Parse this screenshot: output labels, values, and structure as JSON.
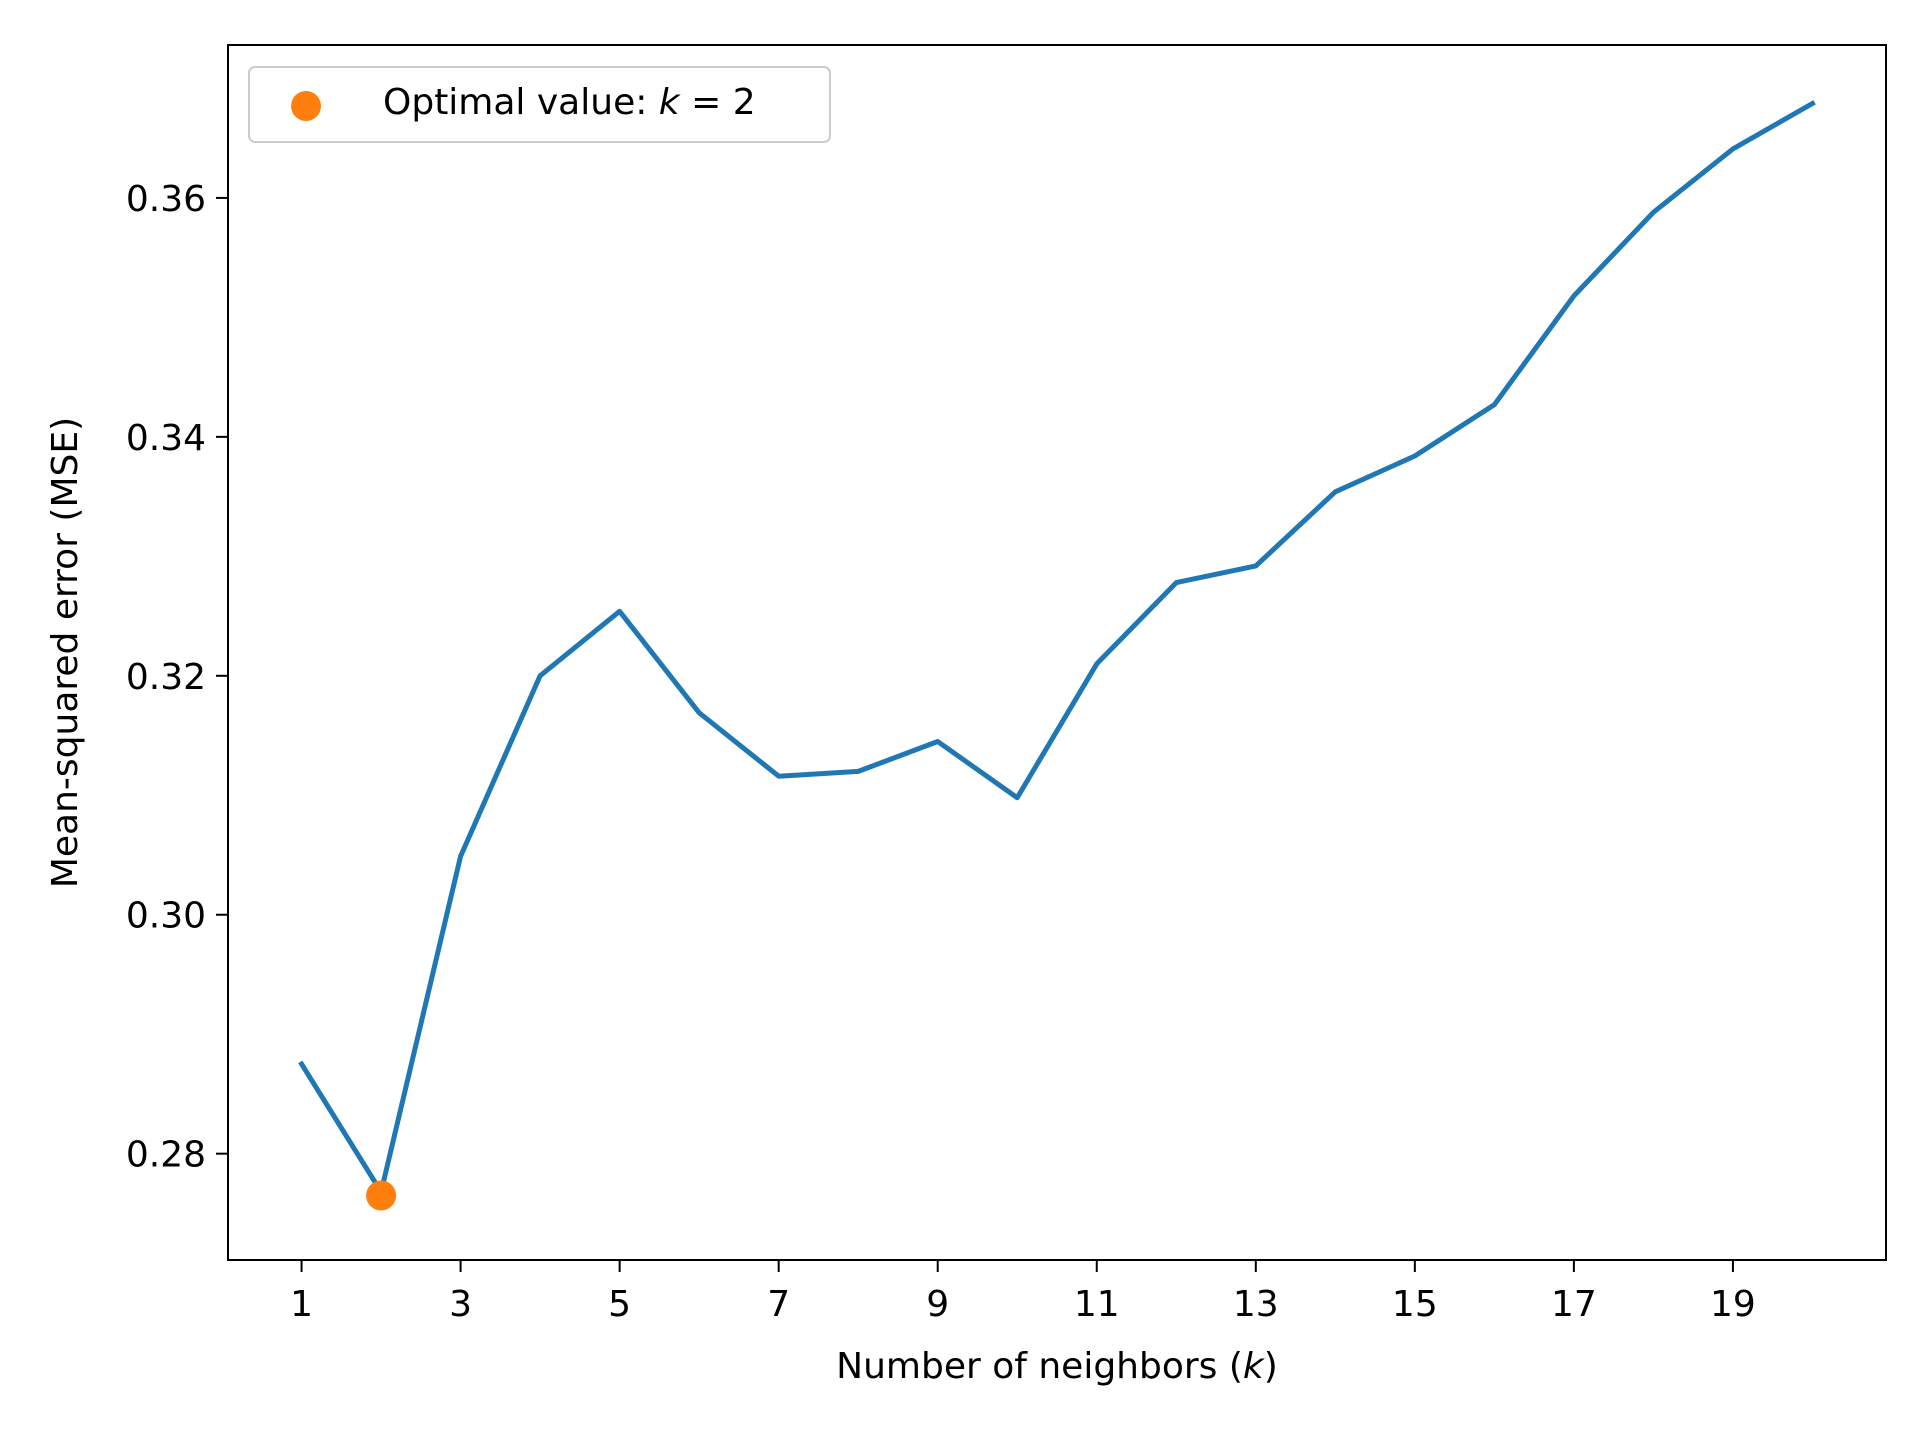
{
  "chart_data": {
    "type": "line",
    "title": "",
    "xlabel": {
      "prefix": "Number of neighbors (",
      "var": "k",
      "suffix": ")"
    },
    "ylabel": "Mean-squared error (MSE)",
    "xlim": [
      0.075,
      20.925
    ],
    "ylim": [
      0.2711,
      0.3728
    ],
    "xticks": [
      1,
      3,
      5,
      7,
      9,
      11,
      13,
      15,
      17,
      19
    ],
    "yticks": [
      0.28,
      0.3,
      0.32,
      0.34,
      0.36
    ],
    "ytick_labels": [
      "0.28",
      "0.30",
      "0.32",
      "0.34",
      "0.36"
    ],
    "grid": false,
    "legend_position": "upper-left",
    "series": [
      {
        "color": "#1f77b4",
        "x": [
          1,
          2,
          3,
          4,
          5,
          6,
          7,
          8,
          9,
          10,
          11,
          12,
          13,
          14,
          15,
          16,
          17,
          18,
          19,
          20
        ],
        "y": [
          0.2875,
          0.2768,
          0.3049,
          0.32,
          0.3254,
          0.3169,
          0.3116,
          0.312,
          0.3145,
          0.3098,
          0.321,
          0.3278,
          0.3292,
          0.3354,
          0.3384,
          0.3427,
          0.3518,
          0.3588,
          0.3641,
          0.3679
        ]
      }
    ],
    "markers": [
      {
        "color": "#ff7f0e",
        "x": 2,
        "y": 0.2765,
        "legend": {
          "prefix": "Optimal value: ",
          "var": "k",
          "suffix": " = 2"
        }
      }
    ]
  }
}
